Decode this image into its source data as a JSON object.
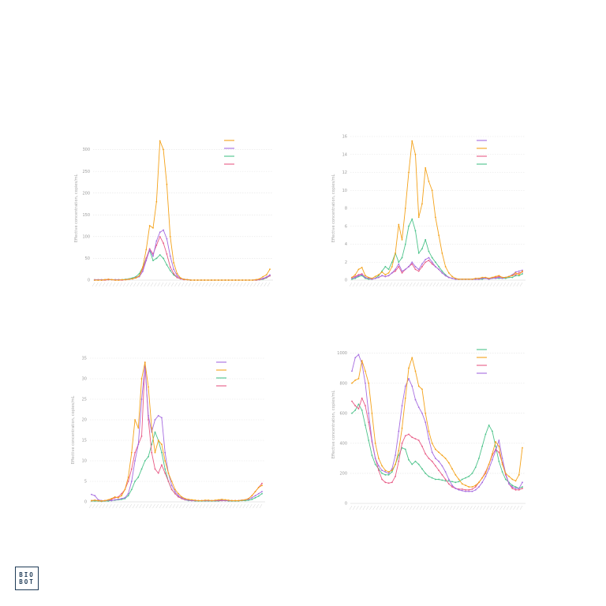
{
  "brand": {
    "logo_line1": "BIO",
    "logo_line2": "BOT"
  },
  "colors": {
    "orange": "#f4a21a",
    "purple": "#a66ce0",
    "green": "#4cc38a",
    "pink": "#e85b86"
  },
  "chart_data": [
    {
      "type": "line",
      "ylabel": "Effective concentration, copies/mL",
      "ylim": [
        0,
        330
      ],
      "yticks": [
        0,
        50,
        100,
        150,
        200,
        250,
        300
      ],
      "legend": {
        "placement": "top-right",
        "order": [
          "orange",
          "purple",
          "green",
          "pink"
        ]
      },
      "series": [
        {
          "color": "orange",
          "values": [
            0,
            0,
            0,
            1,
            2,
            1,
            0,
            0,
            1,
            1,
            2,
            3,
            5,
            10,
            30,
            70,
            125,
            120,
            180,
            320,
            300,
            220,
            100,
            40,
            15,
            5,
            2,
            1,
            0,
            0,
            0,
            0,
            0,
            0,
            0,
            0,
            0,
            0,
            0,
            0,
            0,
            0,
            0,
            0,
            0,
            0,
            0,
            1,
            3,
            8,
            12,
            25
          ]
        },
        {
          "color": "purple",
          "values": [
            1,
            1,
            1,
            1,
            2,
            1,
            1,
            1,
            1,
            1,
            2,
            3,
            5,
            8,
            20,
            45,
            70,
            55,
            90,
            110,
            115,
            95,
            55,
            25,
            10,
            4,
            2,
            1,
            0,
            0,
            0,
            0,
            0,
            0,
            0,
            0,
            0,
            0,
            0,
            0,
            0,
            0,
            0,
            0,
            0,
            0,
            0,
            1,
            2,
            4,
            7,
            12
          ]
        },
        {
          "color": "green",
          "values": [
            0,
            0,
            0,
            1,
            1,
            1,
            1,
            1,
            1,
            2,
            3,
            5,
            8,
            15,
            30,
            50,
            68,
            45,
            50,
            58,
            50,
            35,
            22,
            12,
            6,
            3,
            2,
            1,
            0,
            0,
            0,
            0,
            0,
            0,
            0,
            0,
            0,
            0,
            0,
            0,
            0,
            0,
            0,
            0,
            0,
            0,
            0,
            0,
            1,
            2,
            5,
            10
          ]
        },
        {
          "color": "pink",
          "values": [
            0,
            0,
            0,
            0,
            1,
            1,
            0,
            0,
            0,
            1,
            2,
            3,
            6,
            10,
            25,
            50,
            72,
            60,
            80,
            100,
            85,
            60,
            30,
            15,
            6,
            3,
            1,
            1,
            0,
            0,
            0,
            0,
            0,
            0,
            0,
            0,
            0,
            0,
            0,
            0,
            0,
            0,
            0,
            0,
            0,
            0,
            0,
            0,
            1,
            3,
            6,
            10
          ]
        }
      ]
    },
    {
      "type": "line",
      "ylabel": "Effective concentration, copies/mL",
      "ylim": [
        0,
        16
      ],
      "yticks": [
        0,
        2,
        4,
        6,
        8,
        10,
        12,
        14,
        16
      ],
      "legend": {
        "placement": "top-right",
        "order": [
          "purple",
          "orange",
          "pink",
          "green"
        ]
      },
      "series": [
        {
          "color": "orange",
          "values": [
            0.3,
            0.6,
            1.2,
            1.4,
            0.5,
            0.3,
            0.2,
            0.4,
            0.6,
            0.9,
            0.6,
            0.8,
            1.5,
            3,
            6.2,
            4.5,
            8,
            12,
            15.5,
            14,
            7,
            8.5,
            12.5,
            11,
            10,
            7,
            5,
            3,
            1.5,
            0.8,
            0.4,
            0.2,
            0.1,
            0.1,
            0.1,
            0.1,
            0.1,
            0.2,
            0.2,
            0.3,
            0.3,
            0.2,
            0.3,
            0.4,
            0.5,
            0.3,
            0.3,
            0.4,
            0.5,
            0.8,
            0.6,
            1
          ]
        },
        {
          "color": "purple",
          "values": [
            0.2,
            0.3,
            0.5,
            0.6,
            0.3,
            0.2,
            0.1,
            0.2,
            0.3,
            0.5,
            0.4,
            0.5,
            0.8,
            1.2,
            1.8,
            1,
            1.2,
            1.5,
            2,
            1.5,
            1.2,
            1.8,
            2.3,
            2.5,
            2,
            1.5,
            1.2,
            0.8,
            0.5,
            0.3,
            0.2,
            0.1,
            0.1,
            0.1,
            0.1,
            0.1,
            0.1,
            0.1,
            0.1,
            0.2,
            0.2,
            0.1,
            0.2,
            0.2,
            0.3,
            0.2,
            0.3,
            0.4,
            0.6,
            0.9,
            1,
            1.1
          ]
        },
        {
          "color": "green",
          "values": [
            0.1,
            0.2,
            0.4,
            0.5,
            0.2,
            0.1,
            0.1,
            0.2,
            0.5,
            1,
            1.5,
            1.2,
            2,
            3,
            2,
            2.5,
            4,
            6,
            6.8,
            5.5,
            3,
            3.5,
            4.5,
            3.2,
            2.5,
            2,
            1.5,
            1,
            0.6,
            0.3,
            0.2,
            0.1,
            0.1,
            0.1,
            0.1,
            0.1,
            0.1,
            0.1,
            0.1,
            0.1,
            0.2,
            0.1,
            0.2,
            0.2,
            0.2,
            0.2,
            0.2,
            0.3,
            0.3,
            0.5,
            0.5,
            0.7
          ]
        },
        {
          "color": "pink",
          "values": [
            0.3,
            0.4,
            0.6,
            0.7,
            0.3,
            0.2,
            0.1,
            0.2,
            0.3,
            0.5,
            0.4,
            0.5,
            0.8,
            1,
            1.5,
            0.8,
            1.2,
            1.5,
            1.8,
            1.2,
            1,
            1.5,
            2,
            2.2,
            1.8,
            1.5,
            1.2,
            0.8,
            0.5,
            0.3,
            0.2,
            0.1,
            0.1,
            0.1,
            0.1,
            0.1,
            0.1,
            0.1,
            0.1,
            0.2,
            0.2,
            0.2,
            0.3,
            0.3,
            0.4,
            0.3,
            0.3,
            0.4,
            0.5,
            0.6,
            0.8,
            0.9
          ]
        }
      ]
    },
    {
      "type": "line",
      "ylabel": "Effective concentration, copies/mL",
      "ylim": [
        0,
        35
      ],
      "yticks": [
        0,
        5,
        10,
        15,
        20,
        25,
        30,
        35
      ],
      "legend": {
        "placement": "top-right",
        "order": [
          "purple",
          "orange",
          "green",
          "pink"
        ]
      },
      "series": [
        {
          "color": "orange",
          "values": [
            0.3,
            0.4,
            0.3,
            0.2,
            0.3,
            0.5,
            0.8,
            1.2,
            1,
            1.5,
            3,
            6,
            12,
            20,
            18,
            30,
            34,
            28,
            18,
            12,
            15,
            14,
            10,
            7,
            5,
            3,
            2,
            1.2,
            0.8,
            0.6,
            0.5,
            0.4,
            0.3,
            0.3,
            0.4,
            0.4,
            0.3,
            0.4,
            0.5,
            0.6,
            0.5,
            0.4,
            0.3,
            0.3,
            0.3,
            0.4,
            0.5,
            0.8,
            1.5,
            2.5,
            3.5,
            4
          ]
        },
        {
          "color": "purple",
          "values": [
            1.8,
            1.5,
            0.5,
            0.3,
            0.3,
            0.4,
            0.3,
            0.5,
            0.6,
            0.8,
            1,
            2,
            5,
            10,
            14,
            25,
            33,
            21,
            17,
            20,
            21,
            20.5,
            12,
            7,
            4,
            2.5,
            1.5,
            1,
            0.6,
            0.4,
            0.3,
            0.3,
            0.3,
            0.3,
            0.3,
            0.3,
            0.3,
            0.3,
            0.4,
            0.4,
            0.3,
            0.3,
            0.3,
            0.3,
            0.3,
            0.4,
            0.5,
            0.6,
            1,
            1.5,
            2,
            2.5
          ]
        },
        {
          "color": "green",
          "values": [
            0.2,
            0.2,
            0.2,
            0.1,
            0.2,
            0.2,
            0.3,
            0.4,
            0.5,
            0.6,
            0.8,
            1.5,
            3,
            5,
            6,
            8,
            10,
            11,
            14,
            17,
            15,
            12,
            8,
            5,
            3,
            2,
            1.2,
            0.8,
            0.5,
            0.3,
            0.3,
            0.2,
            0.2,
            0.2,
            0.2,
            0.2,
            0.2,
            0.2,
            0.2,
            0.3,
            0.3,
            0.2,
            0.2,
            0.2,
            0.2,
            0.3,
            0.3,
            0.4,
            0.6,
            1,
            1.4,
            2
          ]
        },
        {
          "color": "pink",
          "values": [
            0.3,
            0.4,
            0.3,
            0.2,
            0.3,
            0.4,
            0.6,
            1,
            1.2,
            2,
            3,
            5,
            8,
            12,
            14,
            16,
            34,
            20,
            12,
            8,
            7,
            9,
            7,
            5,
            3,
            2,
            1.2,
            0.8,
            0.5,
            0.4,
            0.3,
            0.3,
            0.3,
            0.3,
            0.3,
            0.3,
            0.3,
            0.3,
            0.3,
            0.3,
            0.3,
            0.3,
            0.3,
            0.3,
            0.3,
            0.4,
            0.5,
            0.8,
            1.5,
            2.5,
            3.5,
            4.5
          ]
        }
      ]
    },
    {
      "type": "line",
      "ylabel": "Effective concentration, copies/mL",
      "ylim": [
        0,
        1050
      ],
      "yticks": [
        0,
        200,
        400,
        600,
        800,
        1000
      ],
      "legend": {
        "placement": "top-right",
        "order": [
          "green",
          "orange",
          "pink",
          "purple"
        ]
      },
      "series": [
        {
          "color": "orange",
          "values": [
            800,
            820,
            830,
            950,
            880,
            800,
            600,
            400,
            300,
            250,
            220,
            210,
            220,
            260,
            350,
            500,
            700,
            900,
            970,
            880,
            780,
            760,
            600,
            480,
            400,
            360,
            340,
            320,
            300,
            270,
            230,
            190,
            160,
            130,
            120,
            110,
            110,
            120,
            140,
            170,
            200,
            260,
            330,
            410,
            380,
            260,
            200,
            180,
            160,
            150,
            190,
            370
          ]
        },
        {
          "color": "purple",
          "values": [
            880,
            970,
            990,
            930,
            800,
            600,
            420,
            300,
            250,
            220,
            210,
            200,
            230,
            320,
            480,
            650,
            780,
            830,
            780,
            690,
            640,
            600,
            540,
            430,
            340,
            300,
            280,
            250,
            210,
            160,
            120,
            100,
            90,
            85,
            80,
            80,
            80,
            90,
            110,
            140,
            180,
            230,
            290,
            350,
            420,
            300,
            200,
            130,
            110,
            100,
            100,
            140
          ]
        },
        {
          "color": "green",
          "values": [
            600,
            620,
            660,
            620,
            520,
            420,
            320,
            260,
            230,
            200,
            190,
            190,
            210,
            260,
            320,
            370,
            360,
            290,
            260,
            280,
            260,
            230,
            200,
            180,
            170,
            160,
            160,
            155,
            150,
            150,
            145,
            140,
            145,
            160,
            170,
            180,
            200,
            240,
            300,
            380,
            460,
            520,
            480,
            380,
            280,
            210,
            160,
            140,
            120,
            110,
            100,
            110
          ]
        },
        {
          "color": "pink",
          "values": [
            680,
            650,
            630,
            700,
            650,
            540,
            410,
            300,
            220,
            160,
            140,
            135,
            140,
            180,
            280,
            400,
            450,
            460,
            440,
            430,
            420,
            380,
            330,
            300,
            280,
            250,
            220,
            190,
            160,
            130,
            110,
            100,
            95,
            95,
            90,
            90,
            95,
            110,
            140,
            170,
            210,
            260,
            320,
            360,
            340,
            270,
            190,
            130,
            100,
            90,
            90,
            100
          ]
        }
      ]
    }
  ]
}
